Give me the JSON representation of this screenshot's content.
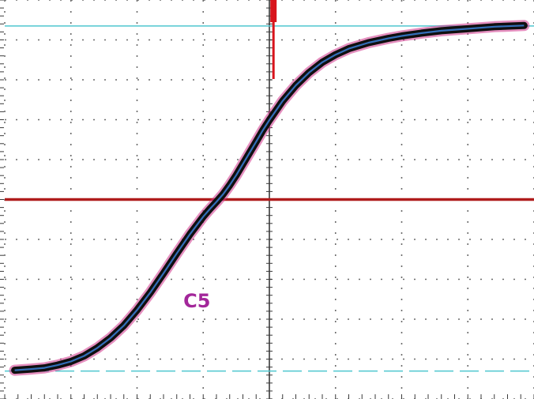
{
  "chart_data": {
    "type": "line",
    "title": "",
    "xlabel": "",
    "ylabel": "",
    "grid": true,
    "divisions": {
      "x": 8,
      "y": 10
    },
    "xlim": [
      -4,
      4
    ],
    "ylim": [
      -5,
      5
    ],
    "colors": {
      "grid": "#6a6a6a",
      "reference_line": "#b01c1c",
      "cursor": "#4fc6cf",
      "trigger_marker": "#d8141c",
      "trace": "#101010",
      "trace_halo": "#d0338a",
      "trace_inner": "#3a7fd6",
      "channel_label": "#a3279a"
    },
    "reference_level": 0,
    "cursors": {
      "upper": 4.35,
      "lower": -4.3
    },
    "channel_label": "C5",
    "series": [
      {
        "points": [
          [
            -3.85,
            -4.28
          ],
          [
            -3.6,
            -4.25
          ],
          [
            -3.4,
            -4.22
          ],
          [
            -3.2,
            -4.15
          ],
          [
            -3.0,
            -4.06
          ],
          [
            -2.8,
            -3.92
          ],
          [
            -2.6,
            -3.72
          ],
          [
            -2.4,
            -3.47
          ],
          [
            -2.2,
            -3.16
          ],
          [
            -2.0,
            -2.77
          ],
          [
            -1.8,
            -2.33
          ],
          [
            -1.6,
            -1.85
          ],
          [
            -1.4,
            -1.35
          ],
          [
            -1.2,
            -0.87
          ],
          [
            -1.0,
            -0.43
          ],
          [
            -0.9,
            -0.24
          ],
          [
            -0.8,
            -0.06
          ],
          [
            -0.7,
            0.13
          ],
          [
            -0.6,
            0.36
          ],
          [
            -0.5,
            0.61
          ],
          [
            -0.4,
            0.89
          ],
          [
            -0.3,
            1.17
          ],
          [
            -0.2,
            1.45
          ],
          [
            -0.1,
            1.73
          ],
          [
            0.0,
            1.99
          ],
          [
            0.2,
            2.47
          ],
          [
            0.4,
            2.86
          ],
          [
            0.6,
            3.18
          ],
          [
            0.8,
            3.44
          ],
          [
            1.0,
            3.63
          ],
          [
            1.2,
            3.78
          ],
          [
            1.5,
            3.93
          ],
          [
            1.8,
            4.04
          ],
          [
            2.0,
            4.1
          ],
          [
            2.3,
            4.17
          ],
          [
            2.6,
            4.23
          ],
          [
            3.0,
            4.28
          ],
          [
            3.4,
            4.33
          ],
          [
            3.85,
            4.36
          ]
        ]
      }
    ]
  }
}
